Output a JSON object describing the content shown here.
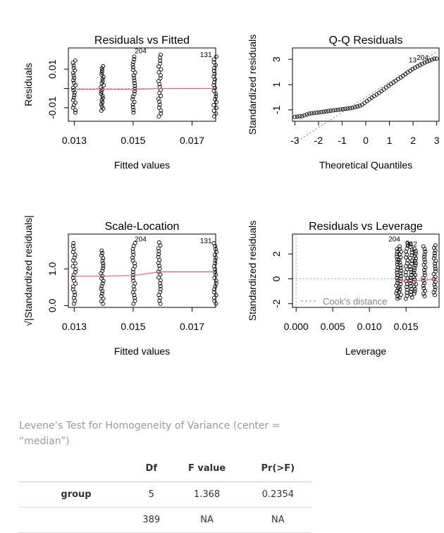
{
  "chart_data": [
    {
      "type": "scatter",
      "title": "Residuals vs Fitted",
      "xlabel": "Fitted values",
      "ylabel": "Residuals",
      "xlim": [
        0.0128,
        0.0178
      ],
      "ylim": [
        -0.017,
        0.021
      ],
      "xticks": [
        0.013,
        0.015,
        0.017
      ],
      "xtick_labels": [
        "0.013",
        "0.015",
        "0.017"
      ],
      "yticks": [
        -0.01,
        0.0,
        0.01
      ],
      "ytick_labels": [
        "-0.01",
        "",
        "0.01"
      ],
      "groups": [
        {
          "x": 0.013,
          "min": -0.0125,
          "max": 0.0145
        },
        {
          "x": 0.01395,
          "min": -0.0115,
          "max": 0.0115
        },
        {
          "x": 0.01502,
          "min": -0.0125,
          "max": 0.0165
        },
        {
          "x": 0.0159,
          "min": -0.0145,
          "max": 0.0175
        },
        {
          "x": 0.01778,
          "min": -0.0145,
          "max": 0.0165
        }
      ],
      "smooth": [
        [
          0.013,
          -0.0004
        ],
        [
          0.01395,
          -0.0004
        ],
        [
          0.01502,
          -0.0004
        ],
        [
          0.0159,
          -0.0001
        ],
        [
          0.01778,
          0.0
        ]
      ],
      "point_labels": [
        {
          "text": "204",
          "x": 0.01545,
          "y": 0.0183
        },
        {
          "text": "131",
          "x": 0.01767,
          "y": 0.0163
        }
      ]
    },
    {
      "type": "scatter",
      "title": "Q-Q Residuals",
      "xlabel": "Theoretical Quantiles",
      "ylabel": "Standardized residuals",
      "xlim": [
        -3.1,
        3.1
      ],
      "ylim": [
        -1.9,
        3.9
      ],
      "xticks": [
        -3,
        -2,
        -1,
        0,
        1,
        2,
        3
      ],
      "xtick_labels": [
        "-3",
        "-2",
        "-1",
        "0",
        "1",
        "2",
        "3"
      ],
      "yticks": [
        -1,
        1,
        3
      ],
      "ytick_labels": [
        "-1",
        "1",
        "3"
      ],
      "curve": [
        [
          -3.0,
          -1.55
        ],
        [
          -2.7,
          -1.5
        ],
        [
          -2.4,
          -1.3
        ],
        [
          -1.8,
          -1.15
        ],
        [
          -1.2,
          -1.0
        ],
        [
          -0.6,
          -0.85
        ],
        [
          -0.2,
          -0.65
        ],
        [
          0.2,
          -0.1
        ],
        [
          0.6,
          0.4
        ],
        [
          1.0,
          0.95
        ],
        [
          1.5,
          1.6
        ],
        [
          2.0,
          2.25
        ],
        [
          2.5,
          2.75
        ],
        [
          2.9,
          3.05
        ]
      ],
      "reference_line": [
        [
          -3.0,
          -3.6
        ],
        [
          3.0,
          3.6
        ]
      ],
      "point_labels": [
        {
          "text": "13",
          "x": 2.15,
          "y": 2.75
        },
        {
          "text": "204",
          "x": 2.65,
          "y": 2.95
        }
      ]
    },
    {
      "type": "scatter",
      "title": "Scale-Location",
      "xlabel": "Fitted values",
      "ylabel": "√|Standardized residuals|",
      "xlim": [
        0.0128,
        0.0178
      ],
      "ylim": [
        -0.05,
        1.95
      ],
      "xticks": [
        0.013,
        0.015,
        0.017
      ],
      "xtick_labels": [
        "0.013",
        "0.015",
        "0.017"
      ],
      "yticks": [
        0.0,
        1.0
      ],
      "ytick_labels": [
        "0.0",
        "1.0"
      ],
      "groups": [
        {
          "x": 0.013,
          "min": 0.05,
          "max": 1.7
        },
        {
          "x": 0.01395,
          "min": 0.05,
          "max": 1.5
        },
        {
          "x": 0.01502,
          "min": 0.05,
          "max": 1.7
        },
        {
          "x": 0.0159,
          "min": 0.05,
          "max": 1.72
        },
        {
          "x": 0.01778,
          "min": 0.05,
          "max": 1.7
        }
      ],
      "smooth": [
        [
          0.013,
          0.8
        ],
        [
          0.01395,
          0.8
        ],
        [
          0.01502,
          0.82
        ],
        [
          0.0159,
          0.92
        ],
        [
          0.01778,
          0.92
        ]
      ],
      "point_labels": [
        {
          "text": "204",
          "x": 0.01545,
          "y": 1.75
        },
        {
          "text": "131",
          "x": 0.01767,
          "y": 1.7
        }
      ]
    },
    {
      "type": "scatter",
      "title": "Residuals vs Leverage",
      "xlabel": "Leverage",
      "ylabel": "Standardized residuals",
      "xlim": [
        -0.0005,
        0.0195
      ],
      "ylim": [
        -2.3,
        3.6
      ],
      "xticks": [
        0.0,
        0.005,
        0.01,
        0.015
      ],
      "xtick_labels": [
        "0.000",
        "0.005",
        "0.010",
        "0.015"
      ],
      "yticks": [
        -2,
        0,
        2
      ],
      "ytick_labels": [
        "-2",
        "0",
        "2"
      ],
      "columns": [
        {
          "x": 0.0138,
          "min": -1.6,
          "max": 2.4
        },
        {
          "x": 0.0142,
          "min": -1.5,
          "max": 2.6
        },
        {
          "x": 0.0151,
          "min": -1.6,
          "max": 2.9
        },
        {
          "x": 0.0157,
          "min": -1.5,
          "max": 2.8
        },
        {
          "x": 0.0162,
          "min": -1.2,
          "max": 2.4
        },
        {
          "x": 0.0175,
          "min": -1.4,
          "max": 2.6
        },
        {
          "x": 0.0189,
          "min": -1.3,
          "max": 2.7
        }
      ],
      "smooth": [
        [
          0.0136,
          -0.1
        ],
        [
          0.0155,
          -0.2
        ],
        [
          0.0175,
          -0.1
        ],
        [
          0.019,
          -0.05
        ]
      ],
      "legend": "Cook's distance",
      "point_labels": [
        {
          "text": "204",
          "x": 0.0142,
          "y": 3.0
        },
        {
          "text": "362",
          "x": 0.0165,
          "y": 2.6
        }
      ]
    }
  ],
  "caption": "Levene’s Test for Homogeneity of Variance (center = “median”)",
  "table": {
    "headers": [
      "Df",
      "F value",
      "Pr(>F)"
    ],
    "rows": [
      {
        "label": "group",
        "df": "5",
        "f": "1.368",
        "p": "0.2354"
      },
      {
        "label": "",
        "df": "389",
        "f": "NA",
        "p": "NA"
      }
    ]
  },
  "colors": {
    "smooth": "#e0607e",
    "reference": "#808080",
    "caption": "#9a9a9a"
  }
}
